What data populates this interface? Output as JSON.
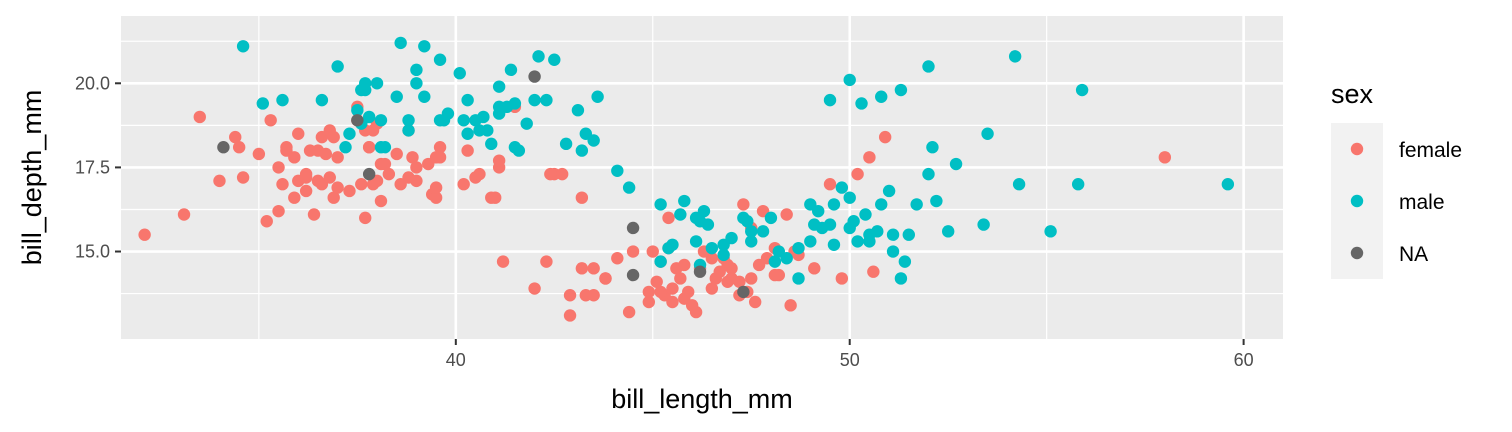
{
  "chart_data": {
    "type": "scatter",
    "title": "",
    "xlabel": "bill_length_mm",
    "ylabel": "bill_depth_mm",
    "xlim": [
      31.5,
      61.0
    ],
    "ylim": [
      12.4,
      22.0
    ],
    "x_ticks": [
      40,
      50,
      60
    ],
    "x_tick_labels": [
      "40",
      "50",
      "60"
    ],
    "y_ticks": [
      15.0,
      17.5,
      20.0
    ],
    "y_tick_labels": [
      "15.0",
      "17.5",
      "20.0"
    ],
    "grid": true,
    "legend": {
      "title": "sex",
      "placement": "right",
      "entries": [
        "female",
        "male",
        "NA"
      ]
    },
    "colors": {
      "female": "#F8766D",
      "male": "#00BFC4",
      "NA": "#666666",
      "panel": "#EBEBEB",
      "grid": "#FFFFFF"
    },
    "series": [
      {
        "name": "female",
        "color": "#F8766D",
        "x": [
          32.1,
          33.1,
          33.5,
          34.0,
          34.4,
          34.5,
          34.6,
          35.0,
          35.2,
          35.3,
          35.5,
          35.5,
          35.6,
          35.7,
          35.9,
          35.9,
          36.0,
          36.0,
          36.2,
          36.2,
          36.2,
          36.3,
          36.4,
          36.5,
          36.5,
          36.6,
          36.6,
          36.7,
          36.8,
          36.9,
          36.9,
          37.0,
          37.0,
          37.3,
          37.5,
          37.5,
          37.6,
          37.7,
          37.7,
          37.8,
          37.9,
          37.9,
          38.0,
          38.0,
          38.1,
          38.1,
          38.3,
          38.5,
          38.6,
          38.8,
          38.8,
          38.9,
          39.0,
          39.0,
          39.3,
          39.4,
          39.5,
          39.5,
          39.6,
          39.6,
          40.2,
          40.3,
          40.5,
          40.6,
          40.9,
          41.0,
          41.1,
          41.1,
          41.5,
          42.5,
          42.7,
          42.9,
          43.2,
          43.3,
          43.5,
          43.8,
          44.5,
          44.9,
          45.1,
          45.3,
          45.5,
          45.5,
          45.6,
          45.7,
          45.8,
          45.9,
          46.1,
          46.2,
          46.4,
          46.5,
          46.6,
          46.8,
          46.9,
          47.0,
          47.2,
          47.5,
          47.6,
          47.7,
          48.1,
          48.5,
          49.1,
          49.8,
          50.5,
          50.9,
          58.0,
          42.4,
          43.2,
          41.2,
          44.9,
          45.2,
          45.4,
          46.0,
          46.4,
          46.9,
          47.3,
          47.5,
          47.8,
          48.2,
          48.4,
          48.7,
          49.5,
          50.2,
          50.6,
          42.0,
          42.3,
          42.9,
          43.5,
          43.8,
          44.1,
          44.4,
          45.0,
          45.2,
          45.4,
          45.8,
          46.3,
          46.5,
          46.7,
          47.0,
          47.2,
          47.4,
          47.9,
          48.1,
          48.6,
          37.8,
          38.2,
          36.8,
          39.5,
          35.7
        ],
        "y": [
          15.5,
          16.1,
          19.0,
          17.1,
          18.4,
          18.1,
          17.2,
          17.9,
          15.9,
          18.9,
          16.2,
          17.5,
          17.0,
          18.0,
          16.6,
          17.8,
          17.1,
          18.5,
          17.3,
          16.8,
          17.2,
          18.0,
          16.1,
          18.0,
          17.1,
          17.0,
          18.4,
          17.9,
          18.6,
          16.6,
          18.4,
          17.8,
          16.9,
          16.8,
          18.9,
          19.3,
          17.0,
          16.0,
          18.6,
          18.1,
          18.6,
          17.0,
          17.1,
          18.8,
          16.5,
          17.6,
          17.3,
          17.9,
          17.0,
          17.2,
          18.6,
          17.8,
          17.1,
          17.5,
          17.6,
          16.7,
          17.8,
          16.6,
          18.1,
          17.8,
          17.0,
          18.0,
          17.2,
          17.3,
          16.6,
          16.6,
          17.5,
          17.7,
          19.3,
          17.3,
          17.3,
          13.1,
          14.5,
          13.7,
          14.5,
          14.2,
          15.0,
          13.8,
          14.1,
          13.7,
          13.5,
          13.9,
          14.5,
          14.2,
          14.6,
          13.8,
          13.2,
          14.5,
          15.0,
          14.8,
          14.2,
          14.8,
          14.1,
          14.5,
          13.7,
          14.2,
          13.5,
          14.6,
          15.1,
          13.4,
          14.5,
          14.2,
          17.8,
          18.4,
          17.8,
          17.3,
          16.6,
          14.7,
          13.5,
          13.8,
          16.0,
          13.4,
          15.0,
          14.6,
          16.4,
          15.7,
          16.2,
          14.3,
          16.1,
          14.9,
          17.0,
          17.3,
          14.4,
          13.9,
          14.7,
          13.7,
          13.7,
          14.2,
          14.8,
          13.2,
          15.0,
          14.7,
          15.1,
          13.6,
          15.0,
          13.9,
          14.4,
          14.2,
          14.1,
          13.8,
          14.8,
          14.3,
          15.0,
          18.1,
          17.6,
          17.2,
          16.9,
          18.1
        ]
      },
      {
        "name": "male",
        "color": "#00BFC4",
        "x": [
          34.6,
          35.1,
          35.6,
          36.6,
          37.0,
          37.2,
          37.3,
          37.5,
          37.6,
          37.6,
          37.7,
          37.8,
          38.0,
          38.1,
          38.2,
          38.5,
          38.6,
          38.8,
          39.0,
          39.0,
          39.2,
          39.6,
          39.7,
          39.8,
          40.1,
          40.2,
          40.3,
          40.5,
          40.6,
          40.7,
          40.8,
          41.1,
          41.1,
          41.3,
          41.4,
          41.5,
          41.6,
          41.8,
          42.0,
          42.1,
          42.3,
          42.5,
          43.1,
          43.3,
          43.5,
          43.6,
          44.1,
          44.4,
          45.2,
          45.5,
          45.7,
          45.8,
          46.1,
          46.2,
          46.3,
          46.4,
          46.8,
          47.0,
          47.3,
          47.5,
          47.8,
          48.0,
          48.4,
          48.7,
          49.0,
          49.2,
          49.3,
          49.5,
          49.6,
          49.8,
          50.0,
          50.0,
          50.2,
          50.4,
          50.5,
          50.7,
          50.8,
          51.0,
          51.1,
          51.3,
          51.5,
          51.7,
          52.0,
          52.1,
          52.2,
          52.5,
          52.7,
          53.4,
          53.5,
          54.2,
          55.1,
          55.8,
          55.9,
          59.6,
          39.2,
          37.7,
          38.1,
          38.8,
          39.6,
          40.3,
          40.9,
          41.1,
          41.5,
          42.8,
          43.2,
          45.2,
          46.1,
          46.5,
          47.5,
          48.2,
          49.1,
          49.5,
          50.0,
          50.3,
          50.8,
          51.3,
          52.0,
          45.4,
          46.2,
          46.8,
          47.4,
          48.1,
          48.7,
          49.0,
          49.6,
          50.1,
          50.5,
          51.1,
          51.4,
          54.3
        ],
        "y": [
          21.1,
          19.4,
          19.5,
          19.5,
          20.5,
          18.1,
          18.5,
          19.2,
          18.8,
          19.8,
          20.0,
          19.0,
          20.0,
          18.9,
          18.1,
          19.6,
          21.2,
          18.9,
          20.0,
          20.4,
          21.1,
          20.7,
          18.9,
          19.1,
          20.3,
          18.9,
          18.5,
          18.9,
          18.6,
          19.0,
          18.6,
          19.1,
          19.9,
          19.3,
          20.4,
          18.1,
          18.0,
          18.8,
          19.5,
          20.8,
          19.5,
          20.7,
          19.2,
          18.5,
          18.3,
          19.6,
          17.4,
          16.9,
          16.4,
          15.2,
          16.1,
          16.5,
          15.3,
          15.9,
          16.2,
          15.8,
          15.2,
          15.4,
          16.0,
          15.3,
          15.6,
          16.0,
          14.8,
          15.1,
          16.4,
          16.2,
          15.7,
          15.8,
          16.4,
          16.9,
          15.7,
          16.6,
          15.3,
          16.1,
          15.3,
          15.6,
          16.4,
          16.8,
          15.5,
          14.2,
          15.5,
          16.4,
          17.3,
          18.1,
          16.5,
          15.6,
          17.6,
          15.8,
          18.5,
          20.8,
          15.6,
          17.0,
          19.8,
          17.0,
          19.6,
          19.8,
          18.1,
          18.6,
          18.9,
          19.5,
          18.2,
          19.3,
          19.4,
          18.2,
          18.0,
          14.7,
          16.0,
          15.1,
          15.6,
          15.0,
          15.8,
          19.5,
          20.1,
          19.4,
          19.6,
          19.8,
          20.5,
          15.1,
          14.6,
          14.9,
          15.9,
          14.7,
          14.2,
          15.3,
          15.2,
          15.9,
          15.5,
          15.0,
          14.7,
          17.0
        ]
      },
      {
        "name": "NA",
        "color": "#666666",
        "x": [
          34.1,
          37.5,
          37.8,
          42.0,
          44.5,
          44.5,
          46.2,
          47.3
        ],
        "y": [
          18.1,
          18.9,
          17.3,
          20.2,
          15.7,
          14.3,
          14.4,
          13.8
        ]
      }
    ]
  }
}
